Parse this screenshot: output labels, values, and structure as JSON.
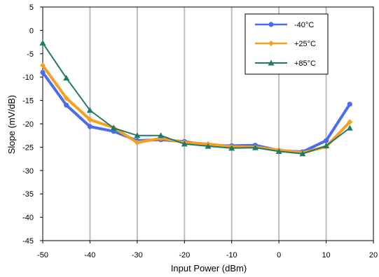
{
  "chart_data": {
    "type": "line",
    "title": "",
    "xlabel": "Input Power (dBm)",
    "ylabel": "Slope (mV/dB)",
    "xlim": [
      -50,
      20
    ],
    "ylim": [
      -45,
      5
    ],
    "xticks": [
      -50,
      -40,
      -30,
      -20,
      -10,
      0,
      10,
      20
    ],
    "yticks": [
      5,
      0,
      -5,
      -10,
      -15,
      -20,
      -25,
      -30,
      -35,
      -40,
      -45
    ],
    "x_tick_labels": [
      "-50",
      "-40",
      "-30",
      "-20",
      "-10",
      "0",
      "10",
      "20"
    ],
    "y_tick_labels": [
      "5",
      "0",
      "-5",
      "-10",
      "-15",
      "-20",
      "-25",
      "-30",
      "-35",
      "-40",
      "-45"
    ],
    "grid": "vertical",
    "legend_position": "top-right",
    "x": [
      -50,
      -45,
      -40,
      -35,
      -30,
      -25,
      -20,
      -15,
      -10,
      -5,
      0,
      5,
      10,
      15
    ],
    "series": [
      {
        "name": "-40°C",
        "color": "#4a6cf0",
        "marker": "circle",
        "values": [
          -9.0,
          -16.0,
          -20.6,
          -21.6,
          -23.6,
          -23.4,
          -23.8,
          -24.6,
          -24.7,
          -24.6,
          -25.7,
          -26.0,
          -23.6,
          -15.8
        ]
      },
      {
        "name": "+25°C",
        "color": "#f5a020",
        "marker": "diamond",
        "values": [
          -7.5,
          -14.5,
          -19.1,
          -20.8,
          -24.0,
          -23.1,
          -24.0,
          -24.3,
          -24.9,
          -25.0,
          -25.6,
          -26.2,
          -24.9,
          -19.6
        ]
      },
      {
        "name": "+85°C",
        "color": "#1f7a6a",
        "marker": "triangle",
        "values": [
          -2.7,
          -10.2,
          -17.1,
          -20.9,
          -22.5,
          -22.5,
          -24.3,
          -24.8,
          -25.2,
          -25.1,
          -25.9,
          -26.4,
          -24.7,
          -20.9
        ]
      }
    ]
  }
}
